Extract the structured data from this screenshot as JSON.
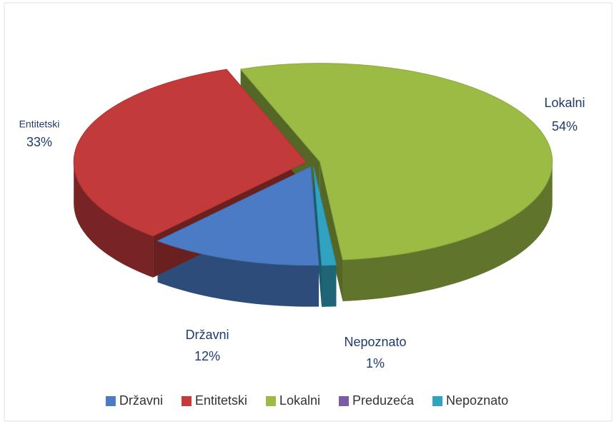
{
  "chart_data": {
    "type": "pie3d",
    "categories": [
      "Državni",
      "Entitetski",
      "Lokalni",
      "Preduzeća",
      "Nepoznato"
    ],
    "values": [
      12,
      33,
      54,
      0,
      1
    ],
    "value_labels": [
      "12%",
      "33%",
      "54%",
      null,
      "1%"
    ],
    "colors": [
      "#4a7bc4",
      "#c33a3a",
      "#9bbb45",
      "#7b5ba6",
      "#30a3c2"
    ],
    "legend": "bottom"
  }
}
